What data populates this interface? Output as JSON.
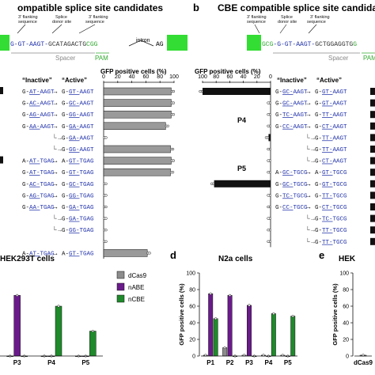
{
  "panels": {
    "a": {
      "title": "ompatible splice site candidates",
      "intron": "intron",
      "ag": "AG",
      "spacer": "Spacer",
      "pam": "PAM",
      "ann": [
        "3' flanking",
        "sequence",
        "Splice",
        "donor site",
        "3' flanking",
        "sequence"
      ]
    },
    "b": {
      "letter": "b",
      "title": "CBE compatible splice site candidates",
      "spacer": "Spacer",
      "pam": "PAM",
      "ann": [
        "3' flanking",
        "sequence",
        "Splice",
        "donor site",
        "3' flanking",
        "sequence"
      ]
    },
    "c": {
      "title": "HEK293T cells"
    },
    "d": {
      "letter": "d",
      "title": "N2a cells"
    },
    "e": {
      "letter": "e",
      "title": "HEK"
    }
  },
  "chart_data": [
    {
      "type": "bar",
      "panel": "a",
      "xlabel": "GFP positive cells (%)",
      "xlim": [
        0,
        100
      ],
      "xticks": [
        "0",
        "20",
        "40",
        "60",
        "80",
        "100"
      ],
      "col_inactive": "“Inactive”",
      "col_active": "“Active”",
      "rows": [
        {
          "inactive": "G-AT-AAGT",
          "active": "G-GT-AAGT",
          "value": 96
        },
        {
          "inactive": "G-AC-AAGT",
          "active": "G-GC-AAGT",
          "value": 96
        },
        {
          "inactive": "G-AG-AAGT",
          "active": "G-GG-AAGT",
          "value": 96
        },
        {
          "inactive": "G-AA-AAGT",
          "active": "G-GA-AAGT",
          "value": 88
        },
        {
          "inactive": "",
          "active": "G-GA-AAGT",
          "value": 0
        },
        {
          "inactive": "",
          "active": "G-GG-AAGT",
          "value": 95
        },
        {
          "inactive": "A-AT-TGAG",
          "active": "A-GT-TGAG",
          "value": 96
        },
        {
          "inactive": "G-AT-TGAG",
          "active": "G-GT-TGAG",
          "value": 95
        },
        {
          "inactive": "G-AC-TGAG",
          "active": "G-GC-TGAG",
          "value": 0
        },
        {
          "inactive": "G-AG-TGAG",
          "active": "G-GG-TGAG",
          "value": 0
        },
        {
          "inactive": "G-AA-TGAG",
          "active": "G-GA-TGAG",
          "value": 0
        },
        {
          "inactive": "",
          "active": "G-GA-TGAG",
          "value": 0
        },
        {
          "inactive": "",
          "active": "G-GG-TGAG",
          "value": 0
        },
        {
          "inactive": "",
          "active": "",
          "value": 0
        },
        {
          "inactive": "A-AT-TGAG",
          "active": "A-GT-TGAG",
          "value": 62
        }
      ]
    },
    {
      "type": "bar",
      "panel": "b",
      "xlabel": "GFP positive cells (%)",
      "xlim": [
        0,
        100
      ],
      "xticks": [
        "100",
        "80",
        "60",
        "40",
        "20",
        "0"
      ],
      "reversed": true,
      "col_inactive": "“Inactive”",
      "col_active": "“Active”",
      "group_labels": [
        "P4",
        "P5"
      ],
      "rows": [
        {
          "inactive": "G-GC-AAGT",
          "active": "G-GT-AAGT",
          "value": 100
        },
        {
          "inactive": "G-GC-AAGT",
          "active": "G-GT-AAGT",
          "value": 0
        },
        {
          "inactive": "G-TC-AAGT",
          "active": "G-TT-AAGT",
          "value": 0
        },
        {
          "inactive": "G-CC-AAGT",
          "active": "G-CT-AAGT",
          "value": 0
        },
        {
          "inactive": "",
          "active": "G-TT-AAGT",
          "value": 3
        },
        {
          "inactive": "",
          "active": "G-TT-AAGT",
          "value": 0
        },
        {
          "inactive": "",
          "active": "G-CT-AAGT",
          "value": 0
        },
        {
          "inactive": "A-GC-TGCG",
          "active": "A-GT-TGCG",
          "value": 0
        },
        {
          "inactive": "G-GC-TGCG",
          "active": "G-GT-TGCG",
          "value": 83
        },
        {
          "inactive": "G-TC-TGCG",
          "active": "G-TT-TGCG",
          "value": 0
        },
        {
          "inactive": "G-CC-TGCG",
          "active": "G-CT-TGCG",
          "value": 0
        },
        {
          "inactive": "",
          "active": "G-TC-TGCG",
          "value": 0
        },
        {
          "inactive": "",
          "active": "G-TT-TGCG",
          "value": 0
        },
        {
          "inactive": "",
          "active": "G-TT-TGCG",
          "value": 0
        }
      ]
    },
    {
      "type": "bar",
      "panel": "c",
      "categories": [
        "P3",
        "P4",
        "P5"
      ],
      "series": [
        {
          "name": "dCas9",
          "values": [
            0,
            0,
            0
          ]
        },
        {
          "name": "nABE",
          "values": [
            73,
            0,
            0
          ]
        },
        {
          "name": "nCBE",
          "values": [
            0,
            60,
            30
          ]
        }
      ],
      "ylim": [
        0,
        100
      ]
    },
    {
      "type": "bar",
      "panel": "d",
      "ylabel": "GFP positive cells (%)",
      "ylim": [
        0,
        100
      ],
      "yticks": [
        "0",
        "20",
        "40",
        "60",
        "80",
        "100"
      ],
      "categories": [
        "P1",
        "P2",
        "P3",
        "P4",
        "P5"
      ],
      "series": [
        {
          "name": "dCas9",
          "values": [
            1,
            10,
            1,
            1,
            1
          ]
        },
        {
          "name": "nABE",
          "values": [
            75,
            73,
            61,
            0,
            0
          ]
        },
        {
          "name": "nCBE",
          "values": [
            45,
            0,
            0,
            51,
            48
          ]
        }
      ]
    },
    {
      "type": "bar",
      "panel": "e",
      "ylabel": "GFP positive cells (%)",
      "ylim": [
        0,
        100
      ],
      "yticks": [
        "0",
        "20",
        "40",
        "60",
        "80",
        "100"
      ],
      "categories": [
        "dCas9"
      ],
      "series": [
        {
          "name": "dCas9",
          "values": [
            1
          ]
        }
      ]
    }
  ],
  "legend": {
    "items": [
      "dCas9",
      "nABE",
      "nCBE"
    ],
    "colors": [
      "#8c8c8c",
      "#6a1b8a",
      "#1f8a2b"
    ]
  },
  "colors": {
    "blue": "#2233aa",
    "green_box": "#33dd33",
    "pam_green": "#33aa33",
    "bar_dark": "#111111",
    "bar_gray": "#9a9a9a"
  }
}
